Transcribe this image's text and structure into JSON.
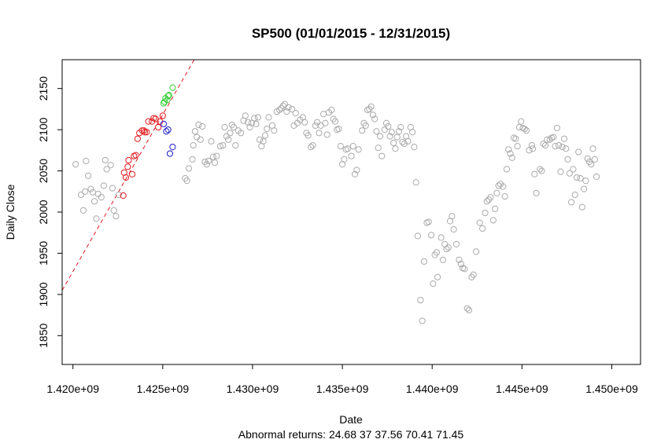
{
  "chart_data": {
    "type": "scatter",
    "title": "SP500 (01/01/2015 - 12/31/2015)",
    "xlabel": "Date",
    "ylabel": "Daily Close",
    "subtitle": "Abnormal returns: 24.68 37 37.56 70.41 71.45",
    "xlim": [
      1419400000,
      1451600000
    ],
    "ylim": [
      1815,
      2185
    ],
    "x_ticks": [
      1420000000,
      1425000000,
      1430000000,
      1435000000,
      1440000000,
      1445000000,
      1450000000
    ],
    "x_tick_labels": [
      "1.420e+09",
      "1.425e+09",
      "1.430e+09",
      "1.435e+09",
      "1.440e+09",
      "1.445e+09",
      "1.450e+09"
    ],
    "y_ticks": [
      1850,
      1900,
      1950,
      2000,
      2050,
      2100,
      2150
    ],
    "y_tick_labels": [
      "1850",
      "1900",
      "1950",
      "2000",
      "2050",
      "2100",
      "2150"
    ],
    "grid": false,
    "colors": {
      "base": "#aaaaaa",
      "red": "#e0191e",
      "blue": "#1a1ac8",
      "green": "#33cc33",
      "line": "#e0191e"
    },
    "regression_line": {
      "style": "dashed",
      "color": "#e0191e",
      "points": [
        [
          1419400000,
          1905
        ],
        [
          1426750000,
          2185
        ]
      ]
    },
    "series": [
      {
        "color": "gray",
        "points": [
          [
            1420150000,
            2058
          ],
          [
            1420450000,
            2021
          ],
          [
            1420580000,
            2002
          ],
          [
            1420680000,
            2025
          ],
          [
            1420730000,
            2062
          ],
          [
            1420850000,
            2044
          ],
          [
            1421000000,
            2028
          ],
          [
            1421100000,
            2024
          ],
          [
            1421200000,
            2013
          ],
          [
            1421300000,
            1992
          ],
          [
            1421400000,
            2022
          ],
          [
            1421580000,
            2018
          ],
          [
            1421720000,
            2032
          ],
          [
            1421800000,
            2063
          ],
          [
            1421880000,
            2052
          ],
          [
            1422100000,
            2057
          ],
          [
            1422200000,
            2029
          ],
          [
            1422280000,
            2002
          ],
          [
            1422400000,
            1995
          ],
          [
            1422550000,
            2021
          ],
          [
            1426250000,
            2041
          ],
          [
            1426350000,
            2038
          ],
          [
            1426450000,
            2053
          ],
          [
            1426650000,
            2064
          ],
          [
            1426700000,
            2081
          ],
          [
            1426800000,
            2098
          ],
          [
            1426900000,
            2091
          ],
          [
            1427000000,
            2106
          ],
          [
            1427100000,
            2088
          ],
          [
            1427200000,
            2104
          ],
          [
            1427350000,
            2061
          ],
          [
            1427450000,
            2058
          ],
          [
            1427550000,
            2062
          ],
          [
            1427700000,
            2086
          ],
          [
            1427800000,
            2067
          ],
          [
            1427900000,
            2060
          ],
          [
            1428000000,
            2068
          ],
          [
            1428200000,
            2080
          ],
          [
            1428350000,
            2081
          ],
          [
            1428450000,
            2103
          ],
          [
            1428550000,
            2092
          ],
          [
            1428650000,
            2088
          ],
          [
            1428750000,
            2096
          ],
          [
            1428850000,
            2106
          ],
          [
            1428950000,
            2103
          ],
          [
            1429050000,
            2081
          ],
          [
            1429200000,
            2099
          ],
          [
            1429350000,
            2096
          ],
          [
            1429500000,
            2111
          ],
          [
            1429600000,
            2117
          ],
          [
            1429750000,
            2109
          ],
          [
            1429850000,
            2103
          ],
          [
            1429950000,
            2108
          ],
          [
            1430100000,
            2114
          ],
          [
            1430200000,
            2107
          ],
          [
            1430300000,
            2115
          ],
          [
            1430400000,
            2088
          ],
          [
            1430500000,
            2080
          ],
          [
            1430600000,
            2086
          ],
          [
            1430700000,
            2093
          ],
          [
            1430800000,
            2101
          ],
          [
            1430900000,
            2115
          ],
          [
            1431100000,
            2105
          ],
          [
            1431200000,
            2099
          ],
          [
            1431350000,
            2122
          ],
          [
            1431500000,
            2124
          ],
          [
            1431600000,
            2126
          ],
          [
            1431700000,
            2129
          ],
          [
            1431800000,
            2131
          ],
          [
            1431900000,
            2122
          ],
          [
            1432000000,
            2127
          ],
          [
            1432200000,
            2125
          ],
          [
            1432300000,
            2105
          ],
          [
            1432400000,
            2120
          ],
          [
            1432500000,
            2108
          ],
          [
            1432650000,
            2112
          ],
          [
            1432800000,
            2115
          ],
          [
            1432900000,
            2109
          ],
          [
            1433000000,
            2096
          ],
          [
            1433100000,
            2093
          ],
          [
            1433250000,
            2079
          ],
          [
            1433350000,
            2081
          ],
          [
            1433500000,
            2105
          ],
          [
            1433600000,
            2109
          ],
          [
            1433700000,
            2096
          ],
          [
            1433800000,
            2105
          ],
          [
            1433950000,
            2119
          ],
          [
            1434050000,
            2108
          ],
          [
            1434150000,
            2094
          ],
          [
            1434250000,
            2121
          ],
          [
            1434400000,
            2124
          ],
          [
            1434500000,
            2113
          ],
          [
            1434600000,
            2110
          ],
          [
            1434700000,
            2100
          ],
          [
            1434800000,
            2101
          ],
          [
            1434900000,
            2080
          ],
          [
            1435000000,
            2058
          ],
          [
            1435100000,
            2064
          ],
          [
            1435200000,
            2076
          ],
          [
            1435300000,
            2077
          ],
          [
            1435500000,
            2068
          ],
          [
            1435600000,
            2080
          ],
          [
            1435700000,
            2046
          ],
          [
            1435800000,
            2051
          ],
          [
            1435900000,
            2076
          ],
          [
            1436100000,
            2099
          ],
          [
            1436200000,
            2108
          ],
          [
            1436300000,
            2105
          ],
          [
            1436400000,
            2124
          ],
          [
            1436500000,
            2125
          ],
          [
            1436600000,
            2128
          ],
          [
            1436700000,
            2118
          ],
          [
            1436800000,
            2113
          ],
          [
            1436900000,
            2098
          ],
          [
            1437000000,
            2078
          ],
          [
            1437100000,
            2092
          ],
          [
            1437200000,
            2068
          ],
          [
            1437350000,
            2100
          ],
          [
            1437450000,
            2108
          ],
          [
            1437550000,
            2104
          ],
          [
            1437650000,
            2092
          ],
          [
            1437750000,
            2097
          ],
          [
            1437850000,
            2084
          ],
          [
            1437950000,
            2077
          ],
          [
            1438050000,
            2091
          ],
          [
            1438150000,
            2098
          ],
          [
            1438250000,
            2103
          ],
          [
            1438350000,
            2085
          ],
          [
            1438450000,
            2083
          ],
          [
            1438550000,
            2092
          ],
          [
            1438650000,
            2086
          ],
          [
            1438800000,
            2103
          ],
          [
            1438900000,
            2097
          ],
          [
            1439000000,
            2079
          ],
          [
            1439100000,
            2036
          ],
          [
            1439200000,
            1971
          ],
          [
            1439350000,
            1893
          ],
          [
            1439450000,
            1868
          ],
          [
            1439550000,
            1940
          ],
          [
            1439700000,
            1987
          ],
          [
            1439800000,
            1988
          ],
          [
            1439950000,
            1972
          ],
          [
            1440050000,
            1913
          ],
          [
            1440150000,
            1948
          ],
          [
            1440250000,
            1951
          ],
          [
            1440300000,
            1921
          ],
          [
            1440500000,
            1969
          ],
          [
            1440600000,
            1942
          ],
          [
            1440700000,
            1961
          ],
          [
            1440800000,
            1955
          ],
          [
            1440900000,
            1957
          ],
          [
            1441000000,
            1989
          ],
          [
            1441100000,
            1995
          ],
          [
            1441200000,
            1979
          ],
          [
            1441350000,
            1961
          ],
          [
            1441500000,
            1942
          ],
          [
            1441600000,
            1937
          ],
          [
            1441700000,
            1932
          ],
          [
            1441800000,
            1931
          ],
          [
            1441950000,
            1883
          ],
          [
            1442050000,
            1881
          ],
          [
            1442200000,
            1921
          ],
          [
            1442300000,
            1924
          ],
          [
            1442450000,
            1952
          ],
          [
            1442650000,
            1987
          ],
          [
            1442800000,
            1980
          ],
          [
            1442950000,
            1999
          ],
          [
            1443050000,
            2013
          ],
          [
            1443150000,
            2015
          ],
          [
            1443250000,
            2018
          ],
          [
            1443400000,
            1990
          ],
          [
            1443500000,
            2004
          ],
          [
            1443600000,
            2023
          ],
          [
            1443700000,
            2032
          ],
          [
            1443800000,
            2034
          ],
          [
            1443950000,
            2031
          ],
          [
            1444050000,
            2019
          ],
          [
            1444150000,
            2052
          ],
          [
            1444250000,
            2076
          ],
          [
            1444350000,
            2071
          ],
          [
            1444450000,
            2066
          ],
          [
            1444550000,
            2090
          ],
          [
            1444650000,
            2089
          ],
          [
            1444750000,
            2080
          ],
          [
            1444850000,
            2103
          ],
          [
            1444950000,
            2110
          ],
          [
            1445050000,
            2102
          ],
          [
            1445150000,
            2101
          ],
          [
            1445250000,
            2099
          ],
          [
            1445400000,
            2075
          ],
          [
            1445550000,
            2081
          ],
          [
            1445600000,
            2077
          ],
          [
            1445700000,
            2046
          ],
          [
            1445800000,
            2023
          ],
          [
            1446000000,
            2052
          ],
          [
            1446100000,
            2050
          ],
          [
            1446200000,
            2083
          ],
          [
            1446300000,
            2081
          ],
          [
            1446400000,
            2088
          ],
          [
            1446550000,
            2088
          ],
          [
            1446650000,
            2090
          ],
          [
            1446750000,
            2091
          ],
          [
            1446850000,
            2080
          ],
          [
            1446950000,
            2102
          ],
          [
            1447050000,
            2081
          ],
          [
            1447150000,
            2049
          ],
          [
            1447250000,
            2079
          ],
          [
            1447350000,
            2089
          ],
          [
            1447450000,
            2077
          ],
          [
            1447550000,
            2064
          ],
          [
            1447650000,
            2047
          ],
          [
            1447750000,
            2012
          ],
          [
            1447850000,
            2052
          ],
          [
            1447950000,
            2021
          ],
          [
            1448050000,
            2042
          ],
          [
            1448150000,
            2073
          ],
          [
            1448250000,
            2041
          ],
          [
            1448350000,
            2006
          ],
          [
            1448450000,
            2028
          ],
          [
            1448550000,
            2038
          ],
          [
            1448650000,
            2065
          ],
          [
            1448750000,
            2061
          ],
          [
            1448850000,
            2058
          ],
          [
            1448950000,
            2077
          ],
          [
            1449050000,
            2064
          ],
          [
            1449150000,
            2043
          ]
        ]
      },
      {
        "color": "red",
        "points": [
          [
            1422800000,
            2020
          ],
          [
            1422850000,
            2048
          ],
          [
            1422950000,
            2042
          ],
          [
            1423050000,
            2055
          ],
          [
            1423100000,
            2063
          ],
          [
            1423300000,
            2046
          ],
          [
            1423400000,
            2068
          ],
          [
            1423500000,
            2069
          ],
          [
            1423600000,
            2089
          ],
          [
            1423700000,
            2096
          ],
          [
            1423850000,
            2099
          ],
          [
            1423950000,
            2099
          ],
          [
            1424000000,
            2097
          ],
          [
            1424100000,
            2097
          ],
          [
            1424200000,
            2110
          ],
          [
            1424400000,
            2110
          ],
          [
            1424500000,
            2114
          ],
          [
            1424600000,
            2113
          ],
          [
            1424750000,
            2103
          ],
          [
            1424850000,
            2110
          ],
          [
            1425000000,
            2117
          ]
        ]
      },
      {
        "color": "blue",
        "points": [
          [
            1425050000,
            2107
          ],
          [
            1425200000,
            2098
          ],
          [
            1425300000,
            2100
          ],
          [
            1425400000,
            2071
          ],
          [
            1425550000,
            2079
          ]
        ]
      },
      {
        "color": "green",
        "points": [
          [
            1425050000,
            2132
          ],
          [
            1425100000,
            2134
          ],
          [
            1425150000,
            2138
          ],
          [
            1425250000,
            2136
          ],
          [
            1425300000,
            2141
          ],
          [
            1425350000,
            2142
          ],
          [
            1425550000,
            2151
          ]
        ]
      }
    ]
  }
}
